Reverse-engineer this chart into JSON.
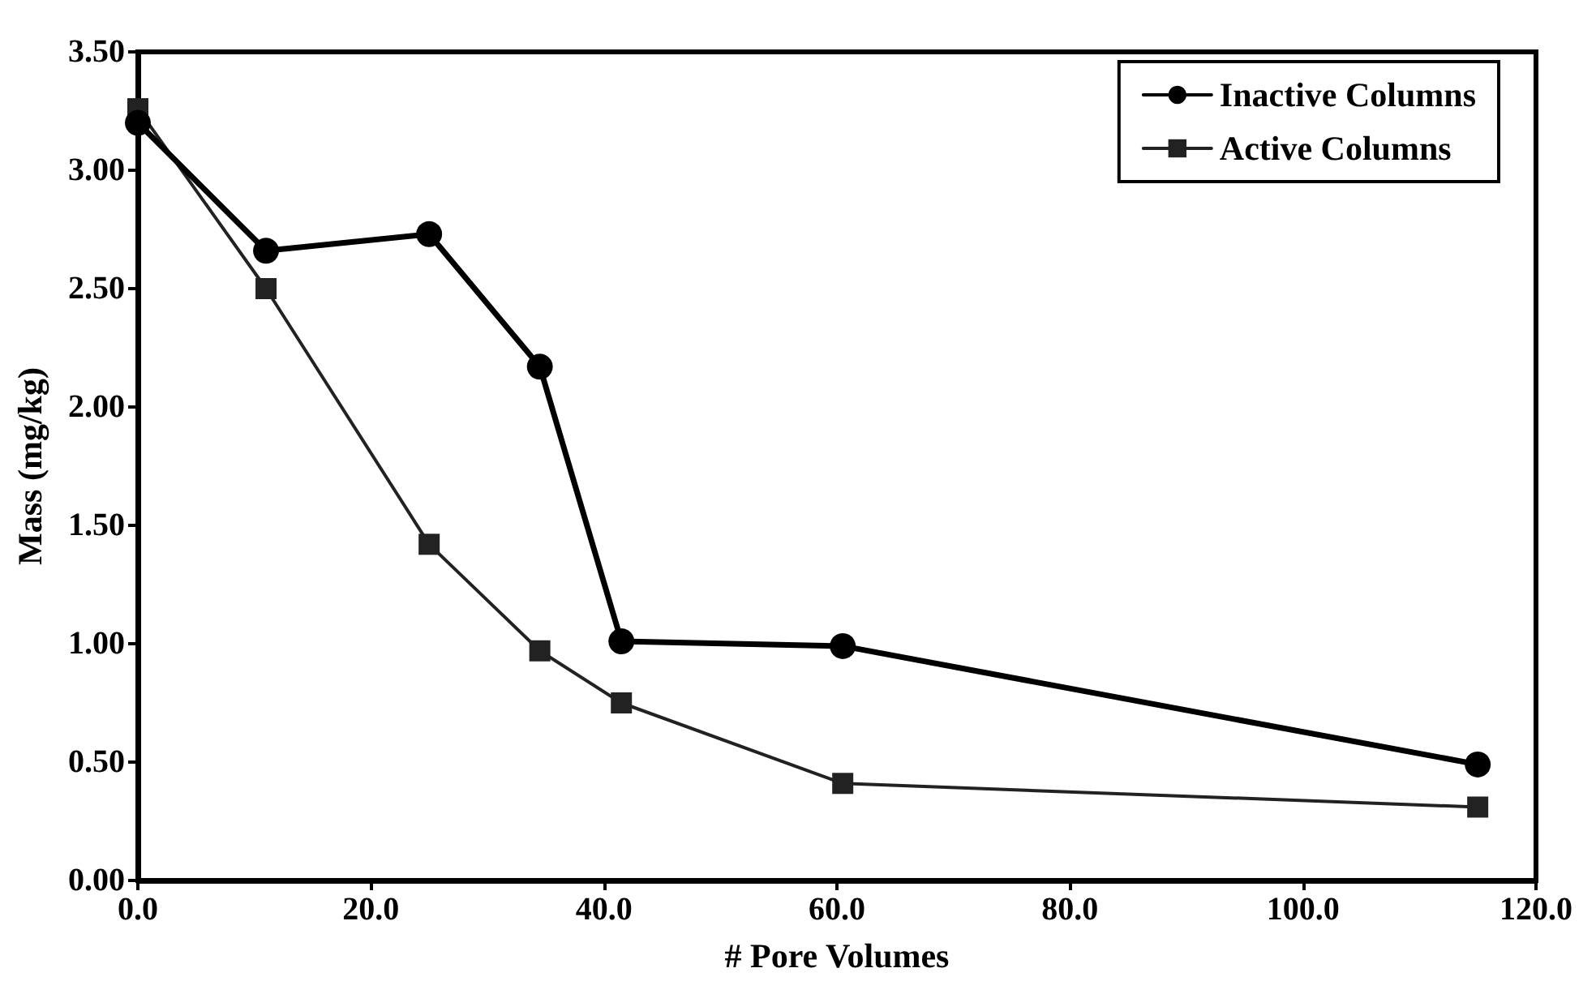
{
  "chart_data": {
    "type": "line",
    "xlabel": "# Pore Volumes",
    "ylabel": "Mass (mg/kg)",
    "xlim": [
      0,
      120
    ],
    "xticks": [
      {
        "value": 0,
        "label": "0.0"
      },
      {
        "value": 20,
        "label": "20.0"
      },
      {
        "value": 40,
        "label": "40.0"
      },
      {
        "value": 60,
        "label": "60.0"
      },
      {
        "value": 80,
        "label": "80.0"
      },
      {
        "value": 100,
        "label": "100.0"
      },
      {
        "value": 120,
        "label": "120.0"
      }
    ],
    "ylim": [
      0,
      3.5
    ],
    "yticks": [
      {
        "value": 0,
        "label": "0.00"
      },
      {
        "value": 0.5,
        "label": "0.50"
      },
      {
        "value": 1,
        "label": "1.00"
      },
      {
        "value": 1.5,
        "label": "1.50"
      },
      {
        "value": 2,
        "label": "2.00"
      },
      {
        "value": 2.5,
        "label": "2.50"
      },
      {
        "value": 3,
        "label": "3.00"
      },
      {
        "value": 3.5,
        "label": "3.50"
      }
    ],
    "x": [
      0,
      11,
      25,
      34.5,
      41.5,
      60.5,
      115
    ],
    "series": [
      {
        "name": "Inactive Columns",
        "color": "#000000",
        "marker": "circle",
        "values": [
          3.2,
          2.66,
          2.73,
          2.17,
          1.01,
          0.99,
          0.49
        ]
      },
      {
        "name": "Active Columns",
        "color": "#222222",
        "marker": "square",
        "values": [
          3.26,
          2.5,
          1.42,
          0.97,
          0.75,
          0.41,
          0.31
        ]
      }
    ],
    "grid": false,
    "legend": "top right",
    "line_style": "solid"
  }
}
